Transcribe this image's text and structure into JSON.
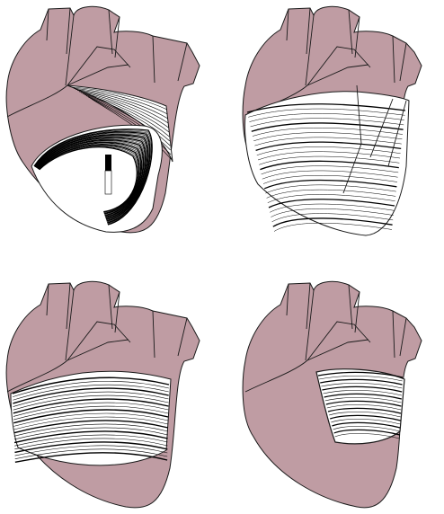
{
  "colors": {
    "heart_fill": "#bf9ca3",
    "outline": "#1a1a1a",
    "fiber_light": "#ffffff",
    "fiber_dark": "#000000",
    "background": "#ffffff"
  },
  "panels": [
    {
      "name": "panel-top-left",
      "view": "cut-away-spiral-band",
      "icon": "heart-spiral-dissection"
    },
    {
      "name": "panel-top-right",
      "view": "oblique-fiber-sheet",
      "icon": "heart-oblique-sheet"
    },
    {
      "name": "panel-bottom-left",
      "view": "circumferential-fiber-sheet",
      "icon": "heart-circumferential-sheet"
    },
    {
      "name": "panel-bottom-right",
      "view": "small-fiber-window",
      "icon": "heart-fiber-window"
    }
  ]
}
